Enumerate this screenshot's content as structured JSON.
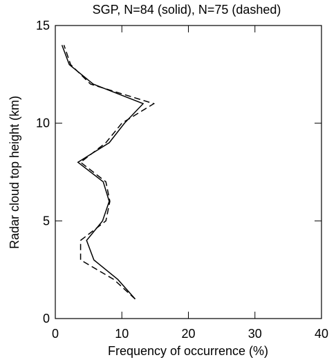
{
  "chart_data": {
    "type": "line",
    "title": "SGP, N=84 (solid), N=75 (dashed)",
    "xlabel": "Frequency of occurrence (%)",
    "ylabel": "Radar cloud top height (km)",
    "y": [
      1,
      2,
      3,
      4,
      5,
      6,
      7,
      8,
      9,
      10,
      11,
      12,
      13,
      14
    ],
    "series": [
      {
        "name": "N=84",
        "color": "#000000",
        "dash": "solid",
        "values": [
          12.0,
          9.4,
          5.8,
          4.7,
          7.1,
          8.1,
          7.2,
          3.4,
          8.1,
          10.4,
          13.2,
          5.7,
          2.1,
          1.0
        ]
      },
      {
        "name": "N=75",
        "color": "#000000",
        "dash": "dashed",
        "values": [
          12.0,
          8.8,
          3.8,
          3.8,
          7.6,
          8.2,
          7.6,
          3.8,
          7.6,
          10.0,
          14.8,
          5.3,
          2.3,
          1.3
        ]
      }
    ],
    "xlim": [
      0,
      40
    ],
    "xticks": [
      0,
      10,
      20,
      30,
      40
    ],
    "ylim": [
      0,
      15
    ],
    "yticks": [
      0,
      5,
      10,
      15
    ]
  }
}
